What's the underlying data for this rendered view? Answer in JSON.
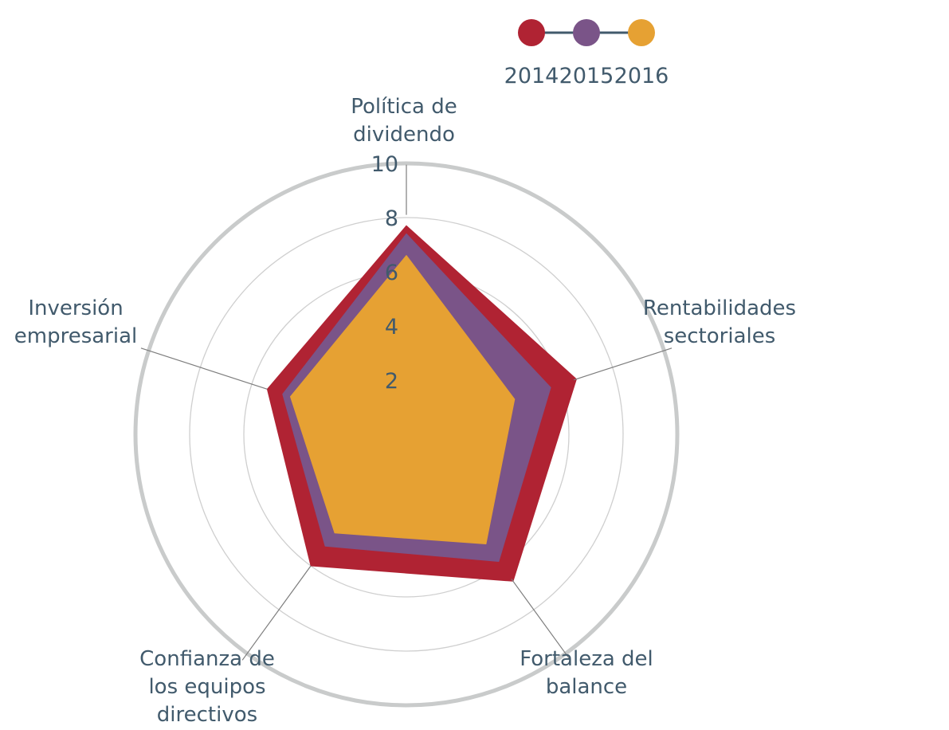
{
  "chart_data": {
    "type": "radar",
    "axes": [
      {
        "label_lines": [
          "Política de",
          "dividendo"
        ]
      },
      {
        "label_lines": [
          "Rentabilidades",
          "sectoriales"
        ]
      },
      {
        "label_lines": [
          "Fortaleza del",
          "balance"
        ]
      },
      {
        "label_lines": [
          "Confianza de",
          "los equipos",
          "directivos"
        ]
      },
      {
        "label_lines": [
          "Inversión",
          "empresarial"
        ]
      }
    ],
    "r_ticks": [
      2,
      4,
      6,
      8,
      10
    ],
    "r_range": [
      0,
      10
    ],
    "series": [
      {
        "name": "2014",
        "color": "#b02333",
        "values": [
          7.7,
          6.6,
          6.7,
          6.0,
          5.4
        ]
      },
      {
        "name": "2015",
        "color": "#7a5488",
        "values": [
          7.4,
          5.6,
          5.8,
          5.1,
          4.8
        ]
      },
      {
        "name": "2016",
        "color": "#e6a133",
        "values": [
          6.6,
          4.2,
          5.0,
          4.5,
          4.5
        ]
      }
    ],
    "legend": {
      "position": "top-right"
    }
  },
  "colors": {
    "grid": "#cfcfcf",
    "outer_ring": "#c9cbcb",
    "spoke": "#7d7d7d",
    "legend_line": "#415a6c"
  }
}
